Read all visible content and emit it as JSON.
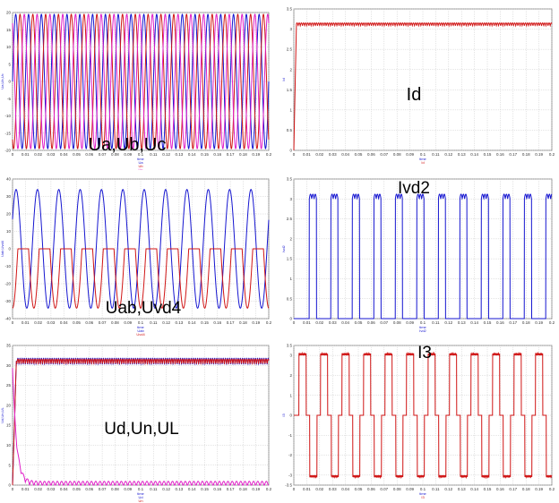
{
  "colors": {
    "blue": "#1515d0",
    "red": "#d01515",
    "magenta": "#e020c8",
    "gridline": "#c8c8c8"
  },
  "chart_data": [
    {
      "type": "line",
      "overlay_label": "Ua,Ub,Uc",
      "xlabel": "time",
      "ylabel": "Ua,Ub,Uc",
      "xlim": [
        0,
        0.2
      ],
      "ylim": [
        -20,
        20
      ],
      "xticks": [
        "0",
        "0.01",
        "0.02",
        "0.03",
        "0.04",
        "0.05",
        "0.06",
        "0.07",
        "0.08",
        "0.09",
        "0.1",
        "0.11",
        "0.12",
        "0.13",
        "0.14",
        "0.15",
        "0.16",
        "0.17",
        "0.18",
        "0.19",
        "0.2"
      ],
      "yticks": [
        "-20",
        "-15",
        "-10",
        "-5",
        "0",
        "5",
        "10",
        "15",
        "20"
      ],
      "legend": [
        "Ua",
        "Ub",
        "Uc"
      ],
      "series": [
        {
          "name": "Ua",
          "color": "blue",
          "wave": "sine",
          "amplitude": 19.5,
          "period": 0.01,
          "phase_deg": 0
        },
        {
          "name": "Ub",
          "color": "red",
          "wave": "sine",
          "amplitude": 19.5,
          "period": 0.01,
          "phase_deg": -120
        },
        {
          "name": "Uc",
          "color": "magenta",
          "wave": "sine",
          "amplitude": 19.5,
          "period": 0.01,
          "phase_deg": 120
        }
      ]
    },
    {
      "type": "line",
      "overlay_label": "Id",
      "xlabel": "time",
      "ylabel": "Id",
      "xlim": [
        0,
        0.2
      ],
      "ylim": [
        0,
        3.5
      ],
      "xticks": [
        "0",
        "0.01",
        "0.02",
        "0.03",
        "0.04",
        "0.05",
        "0.06",
        "0.07",
        "0.08",
        "0.09",
        "0.1",
        "0.11",
        "0.12",
        "0.13",
        "0.14",
        "0.15",
        "0.16",
        "0.17",
        "0.18",
        "0.19",
        "0.2"
      ],
      "yticks": [
        "0",
        "0.5",
        "1",
        "1.5",
        "2",
        "2.5",
        "3",
        "3.5"
      ],
      "legend": [
        "Id"
      ],
      "series": [
        {
          "name": "Id",
          "color": "red",
          "wave": "rectified_dc",
          "level": 3.12,
          "ripple": 0.07,
          "ripple_period": 0.00167,
          "rise_time": 0.002
        }
      ]
    },
    {
      "type": "line",
      "overlay_label": "Uab,Uvd4",
      "xlabel": "time",
      "ylabel": "Uab,Uvd4",
      "xlim": [
        0,
        0.2
      ],
      "ylim": [
        -40,
        40
      ],
      "xticks": [
        "0",
        "0.01",
        "0.02",
        "0.03",
        "0.04",
        "0.05",
        "0.06",
        "0.07",
        "0.08",
        "0.09",
        "0.1",
        "0.11",
        "0.12",
        "0.13",
        "0.14",
        "0.15",
        "0.16",
        "0.17",
        "0.18",
        "0.19",
        "0.2"
      ],
      "yticks": [
        "-40",
        "-30",
        "-20",
        "-10",
        "0",
        "10",
        "20",
        "30",
        "40"
      ],
      "legend": [
        "Uab",
        "Uvd4"
      ],
      "series": [
        {
          "name": "Uab",
          "color": "blue",
          "wave": "sine",
          "amplitude": 34,
          "period": 0.01667,
          "phase_deg": 30
        },
        {
          "name": "Uvd4",
          "color": "red",
          "wave": "clipped_sine",
          "amplitude": 34,
          "clip_max": 0,
          "period": 0.01667,
          "phase_deg": -90
        }
      ]
    },
    {
      "type": "line",
      "overlay_label": "Ivd2",
      "xlabel": "time",
      "ylabel": "Ivd2",
      "xlim": [
        0,
        0.2
      ],
      "ylim": [
        0,
        3.5
      ],
      "xticks": [
        "0",
        "0.01",
        "0.02",
        "0.03",
        "0.04",
        "0.05",
        "0.06",
        "0.07",
        "0.08",
        "0.09",
        "0.1",
        "0.11",
        "0.12",
        "0.13",
        "0.14",
        "0.15",
        "0.16",
        "0.17",
        "0.18",
        "0.19",
        "0.2"
      ],
      "yticks": [
        "0",
        "0.5",
        "1",
        "1.5",
        "2",
        "2.5",
        "3",
        "3.5"
      ],
      "legend": [
        "Ivd2"
      ],
      "series": [
        {
          "name": "Ivd2",
          "color": "blue",
          "wave": "pulse",
          "level": 3.12,
          "period": 0.01667,
          "duty": 0.333,
          "start": 0.012
        }
      ]
    },
    {
      "type": "line",
      "overlay_label": "Ud,Un,UL",
      "xlabel": "time",
      "ylabel": "Ud,Un,UL",
      "xlim": [
        0,
        0.2
      ],
      "ylim": [
        0,
        35
      ],
      "xticks": [
        "0",
        "0.01",
        "0.02",
        "0.03",
        "0.04",
        "0.05",
        "0.06",
        "0.07",
        "0.08",
        "0.09",
        "0.1",
        "0.11",
        "0.12",
        "0.13",
        "0.14",
        "0.15",
        "0.16",
        "0.17",
        "0.18",
        "0.19",
        "0.2"
      ],
      "yticks": [
        "0",
        "5",
        "10",
        "15",
        "20",
        "25",
        "30",
        "35"
      ],
      "legend": [
        "Ud",
        "Un",
        "UL"
      ],
      "series": [
        {
          "name": "Ud",
          "color": "blue",
          "wave": "rectified_dc",
          "level": 31,
          "ripple": 1.6,
          "ripple_period": 0.00167,
          "rise_time": 0.003
        },
        {
          "name": "Un",
          "color": "red",
          "wave": "rectified_dc",
          "level": 31,
          "ripple": 1.2,
          "ripple_period": 0.00167,
          "rise_time": 0.003
        },
        {
          "name": "UL",
          "color": "magenta",
          "wave": "decay_ripple",
          "start_level": 30,
          "level": 0.3,
          "ripple": 1.3,
          "ripple_period": 0.00333,
          "decay_time": 0.003
        }
      ]
    },
    {
      "type": "line",
      "overlay_label": "I3",
      "xlabel": "time",
      "ylabel": "I3",
      "xlim": [
        0,
        0.2
      ],
      "ylim": [
        -3.5,
        3.5
      ],
      "xticks": [
        "0",
        "0.01",
        "0.02",
        "0.03",
        "0.04",
        "0.05",
        "0.06",
        "0.07",
        "0.08",
        "0.09",
        "0.1",
        "0.11",
        "0.12",
        "0.13",
        "0.14",
        "0.15",
        "0.16",
        "0.17",
        "0.18",
        "0.19",
        "0.2"
      ],
      "yticks": [
        "-3.5",
        "-3",
        "-2",
        "-1",
        "0",
        "1",
        "2",
        "3",
        "3.5"
      ],
      "legend": [
        "I3"
      ],
      "series": [
        {
          "name": "I3",
          "color": "red",
          "wave": "six_step",
          "level": 3.12,
          "period": 0.01667,
          "start": 0.004
        }
      ]
    }
  ]
}
